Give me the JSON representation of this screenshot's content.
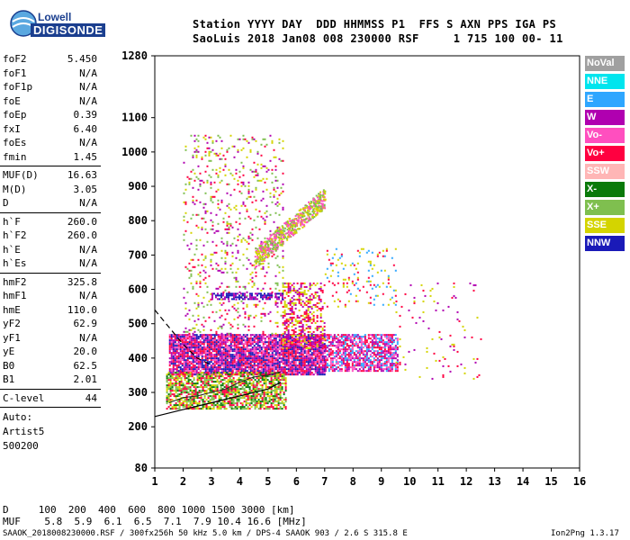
{
  "logo": {
    "line1": "Lowell",
    "line2": "DIGISONDE"
  },
  "header": {
    "line1": "Station YYYY DAY  DDD HHMMSS P1  FFS S AXN PPS IGA PS",
    "line2": "SaoLuis 2018 Jan08 008 230000 RSF     1 715 100 00- 11"
  },
  "params_a": [
    {
      "name": "foF2",
      "value": "5.450"
    },
    {
      "name": "foF1",
      "value": "N/A"
    },
    {
      "name": "foF1p",
      "value": "N/A"
    },
    {
      "name": "foE",
      "value": "N/A"
    },
    {
      "name": "foEp",
      "value": "0.39"
    },
    {
      "name": "fxI",
      "value": "6.40"
    },
    {
      "name": "foEs",
      "value": "N/A"
    },
    {
      "name": "fmin",
      "value": "1.45"
    }
  ],
  "params_b": [
    {
      "name": "MUF(D)",
      "value": "16.63"
    },
    {
      "name": "M(D)",
      "value": "3.05"
    },
    {
      "name": "D",
      "value": "N/A"
    }
  ],
  "params_c": [
    {
      "name": "h`F",
      "value": "260.0"
    },
    {
      "name": "h`F2",
      "value": "260.0"
    },
    {
      "name": "h`E",
      "value": "N/A"
    },
    {
      "name": "h`Es",
      "value": "N/A"
    }
  ],
  "params_d": [
    {
      "name": "hmF2",
      "value": "325.8"
    },
    {
      "name": "hmF1",
      "value": "N/A"
    },
    {
      "name": "hmE",
      "value": "110.0"
    },
    {
      "name": "yF2",
      "value": "62.9"
    },
    {
      "name": "yF1",
      "value": "N/A"
    },
    {
      "name": "yE",
      "value": "20.0"
    },
    {
      "name": "B0",
      "value": "62.5"
    },
    {
      "name": "B1",
      "value": "2.01"
    }
  ],
  "clevel": {
    "name": "C-level",
    "value": "44"
  },
  "auto": [
    "Auto:",
    "Artist5",
    "500200"
  ],
  "legend": [
    {
      "label": "NoVal",
      "color": "#a0a0a0"
    },
    {
      "label": "NNE",
      "color": "#00e5ee"
    },
    {
      "label": "E",
      "color": "#2ea6ff"
    },
    {
      "label": "W",
      "color": "#b000b0"
    },
    {
      "label": "Vo-",
      "color": "#ff4fbf"
    },
    {
      "label": "Vo+",
      "color": "#ff0040"
    },
    {
      "label": "SSW",
      "color": "#ffb6b6"
    },
    {
      "label": "X-",
      "color": "#0a7a0a"
    },
    {
      "label": "X+",
      "color": "#7fbf4f"
    },
    {
      "label": "SSE",
      "color": "#d4d400"
    },
    {
      "label": "NNW",
      "color": "#1a1ab8"
    }
  ],
  "footer": {
    "d_line": "D     100  200  400  600  800 1000 1500 3000 [km]",
    "muf_line": "MUF    5.8  5.9  6.1  6.5  7.1  7.9 10.4 16.6 [MHz]",
    "bottom_left": "SAAOK_2018008230000.RSF / 300fx256h 50 kHz 5.0 km / DPS-4 SAAOK 903 / 2.6 S 315.8 E",
    "bottom_right": "Ion2Png 1.3.17"
  },
  "chart_data": {
    "type": "scatter",
    "xlabel": "",
    "ylabel": "",
    "xlim": [
      1,
      16
    ],
    "ylim": [
      80,
      1280
    ],
    "x_ticks": [
      "1",
      "2",
      "3",
      "4",
      "5",
      "6",
      "7",
      "8",
      "9",
      "10",
      "11",
      "12",
      "13",
      "14",
      "15",
      "16"
    ],
    "y_ticks": [
      {
        "v": 80,
        "label": "80"
      },
      {
        "v": 200,
        "label": "200"
      },
      {
        "v": 300,
        "label": "300"
      },
      {
        "v": 400,
        "label": "400"
      },
      {
        "v": 500,
        "label": "500"
      },
      {
        "v": 600,
        "label": "600"
      },
      {
        "v": 700,
        "label": "700"
      },
      {
        "v": 800,
        "label": "800"
      },
      {
        "v": 900,
        "label": "900"
      },
      {
        "v": 1000,
        "label": "1000"
      },
      {
        "v": 1100,
        "label": "1100"
      },
      {
        "v": 1280,
        "label": "1280"
      }
    ],
    "echo_regions": [
      {
        "x": [
          1.5,
          7.0
        ],
        "y": [
          350,
          470
        ],
        "colors": [
          "#ff0040",
          "#b000b0",
          "#ff4fbf",
          "#1a1ab8"
        ],
        "density": 0.9
      },
      {
        "x": [
          1.4,
          5.6
        ],
        "y": [
          250,
          360
        ],
        "colors": [
          "#d4d400",
          "#ff0040",
          "#7fbf4f",
          "#0a7a0a"
        ],
        "density": 0.7
      },
      {
        "x": [
          7.0,
          9.6
        ],
        "y": [
          360,
          470
        ],
        "colors": [
          "#ff0040",
          "#b000b0",
          "#2ea6ff",
          "#ff4fbf"
        ],
        "density": 0.75
      },
      {
        "x": [
          2.0,
          5.5
        ],
        "y": [
          470,
          1050
        ],
        "colors": [
          "#d4d400",
          "#ff0040",
          "#b000b0",
          "#7fbf4f"
        ],
        "density": 0.12
      },
      {
        "x": [
          5.5,
          7.0
        ],
        "y": [
          430,
          620
        ],
        "colors": [
          "#ff0040",
          "#d4d400",
          "#b000b0"
        ],
        "density": 0.45
      },
      {
        "x": [
          7.0,
          9.5
        ],
        "y": [
          550,
          720
        ],
        "colors": [
          "#ff0040",
          "#d4d400",
          "#2ea6ff"
        ],
        "density": 0.12
      },
      {
        "x": [
          3.0,
          5.5
        ],
        "y": [
          570,
          590
        ],
        "colors": [
          "#1a1ab8",
          "#b000b0"
        ],
        "density": 0.7
      },
      {
        "x": [
          9.5,
          12.5
        ],
        "y": [
          340,
          620
        ],
        "colors": [
          "#d4d400",
          "#ff0040",
          "#b000b0"
        ],
        "density": 0.03
      }
    ],
    "echo_band_x2": {
      "x": [
        4.5,
        7.0
      ],
      "y": [
        690,
        870
      ],
      "colors": [
        "#d4d400",
        "#ff4fbf",
        "#7fbf4f"
      ]
    },
    "profile_curve": [
      [
        1.0,
        230
      ],
      [
        2.0,
        250
      ],
      [
        3.0,
        270
      ],
      [
        4.0,
        290
      ],
      [
        5.0,
        310
      ],
      [
        5.45,
        330
      ]
    ],
    "dashed_curve": [
      [
        1.0,
        540
      ],
      [
        1.5,
        490
      ],
      [
        2.0,
        440
      ],
      [
        2.5,
        400
      ],
      [
        3.0,
        380
      ]
    ],
    "trace_curve": [
      [
        1.5,
        270
      ],
      [
        2.0,
        285
      ],
      [
        2.5,
        290
      ],
      [
        3.0,
        300
      ],
      [
        3.5,
        310
      ],
      [
        4.0,
        330
      ],
      [
        4.5,
        345
      ],
      [
        5.0,
        350
      ],
      [
        5.45,
        360
      ]
    ]
  }
}
